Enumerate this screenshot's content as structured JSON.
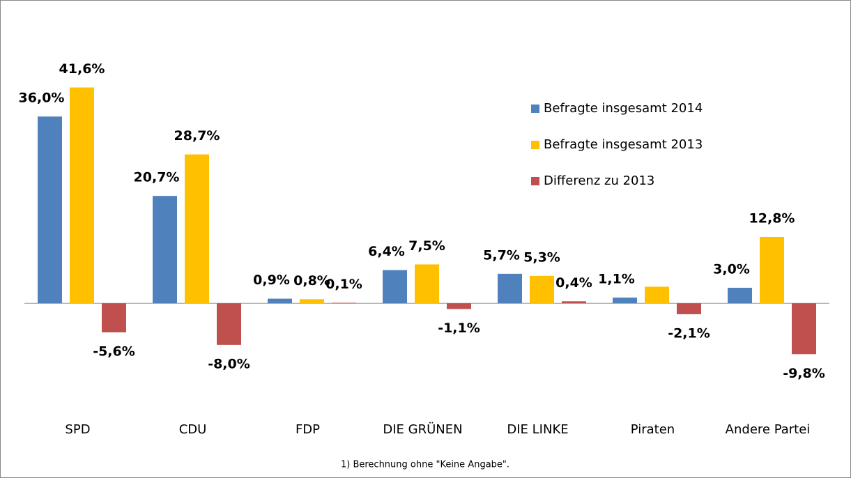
{
  "chart_data": {
    "type": "bar",
    "categories": [
      "SPD",
      "CDU",
      "FDP",
      "DIE GRÜNEN",
      "DIE LINKE",
      "Piraten",
      "Andere Partei"
    ],
    "series": [
      {
        "name": "Befragte insgesamt 2014",
        "color": "#4f81bd",
        "values": [
          36.0,
          20.7,
          0.9,
          6.4,
          5.7,
          1.1,
          3.0
        ],
        "value_labels": [
          "36,0%",
          "20,7%",
          "0,9%",
          "6,4%",
          "5,7%",
          "1,1%",
          "3,0%"
        ]
      },
      {
        "name": "Befragte insgesamt 2013",
        "color": "#ffc000",
        "values": [
          41.6,
          28.7,
          0.8,
          7.5,
          5.3,
          3.2,
          12.8
        ],
        "value_labels": [
          "41,6%",
          "28,7%",
          "0,8%",
          "7,5%",
          "5,3%",
          null,
          "12,8%"
        ]
      },
      {
        "name": "Differenz zu 2013",
        "color": "#c0504d",
        "values": [
          -5.6,
          -8.0,
          0.1,
          -1.1,
          0.4,
          -2.1,
          -9.8
        ],
        "value_labels": [
          "-5,6%",
          "-8,0%",
          "0,1%",
          "-1,1%",
          "0,4%",
          "-2,1%",
          "-9,8%"
        ]
      }
    ],
    "ylim": [
      -15,
      50
    ],
    "footnote": "1) Berechnung ohne \"Keine Angabe\"."
  }
}
